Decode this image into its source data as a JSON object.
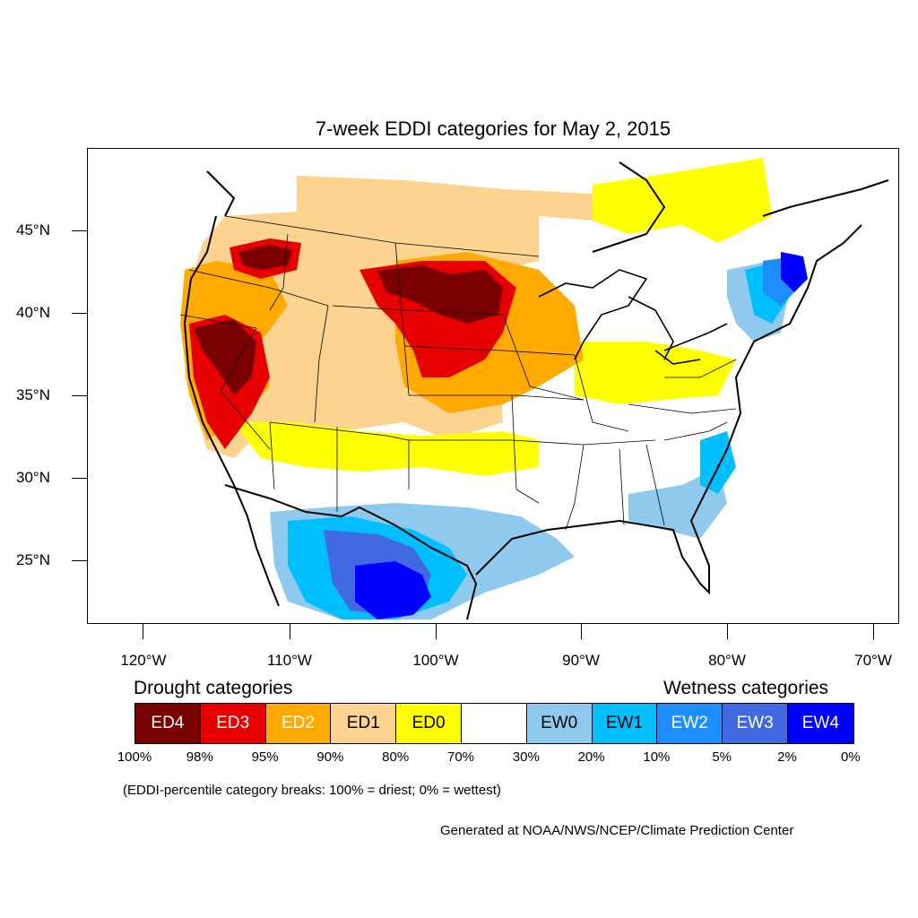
{
  "title": "7-week EDDI categories for May 2, 2015",
  "y_axis_labels": [
    "45°N",
    "40°N",
    "35°N",
    "30°N",
    "25°N"
  ],
  "x_axis_labels": [
    "120°W",
    "110°W",
    "100°W",
    "90°W",
    "80°W",
    "70°W"
  ],
  "legend": {
    "drought_heading": "Drought categories",
    "wetness_heading": "Wetness categories",
    "categories": [
      {
        "label": "ED4",
        "color": "#7a0000",
        "text_color": "#ffffff"
      },
      {
        "label": "ED3",
        "color": "#e60000",
        "text_color": "#ffffff"
      },
      {
        "label": "ED2",
        "color": "#ffaa00",
        "text_color": "#ffffff"
      },
      {
        "label": "ED1",
        "color": "#fcd38f",
        "text_color": "#000000"
      },
      {
        "label": "ED0",
        "color": "#ffff00",
        "text_color": "#000000"
      },
      {
        "label": "",
        "color": "#ffffff",
        "text_color": "#000000"
      },
      {
        "label": "EW0",
        "color": "#8fcaee",
        "text_color": "#000000"
      },
      {
        "label": "EW1",
        "color": "#00bfff",
        "text_color": "#000000"
      },
      {
        "label": "EW2",
        "color": "#1e8eff",
        "text_color": "#ffffff"
      },
      {
        "label": "EW3",
        "color": "#4169e1",
        "text_color": "#ffffff"
      },
      {
        "label": "EW4",
        "color": "#0000ff",
        "text_color": "#ffffff"
      }
    ],
    "breaks": [
      "100%",
      "98%",
      "95%",
      "90%",
      "80%",
      "70%",
      "30%",
      "20%",
      "10%",
      "5%",
      "2%",
      "0%"
    ]
  },
  "note": "(EDDI-percentile category breaks: 100% = driest; 0% = wettest)",
  "credit": "Generated at NOAA/NWS/NCEP/Climate Prediction Center"
}
